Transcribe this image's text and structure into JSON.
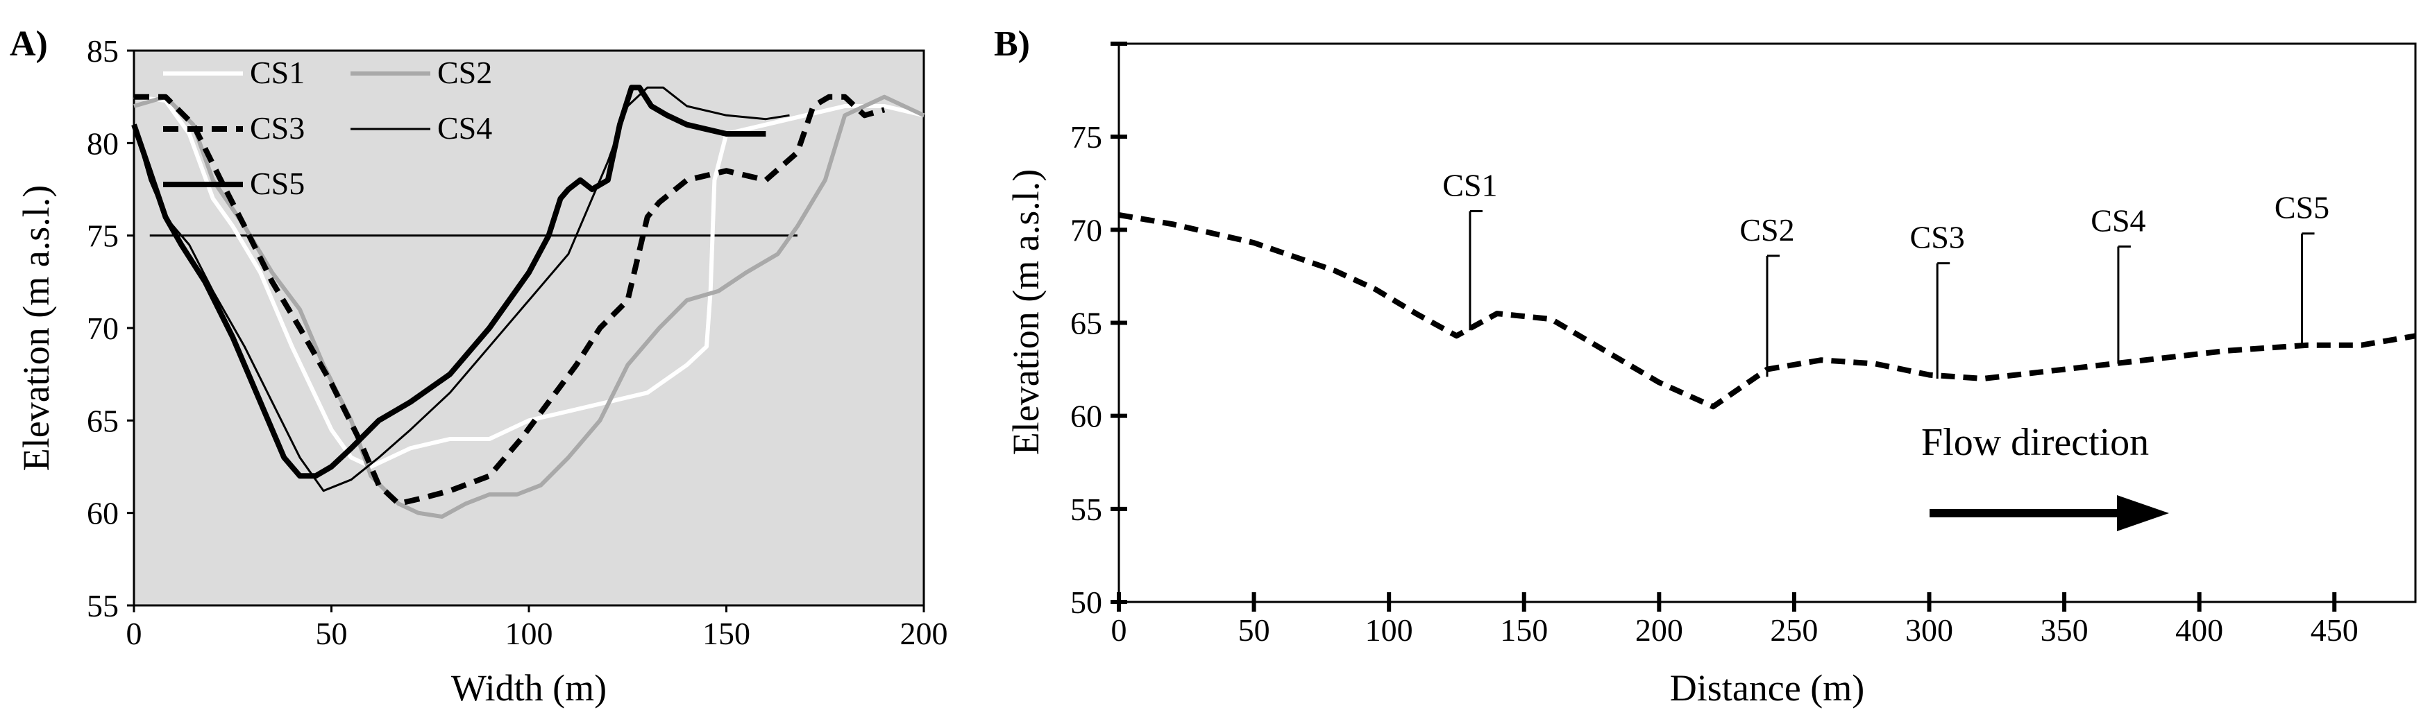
{
  "chart_data": [
    {
      "panel": "A)",
      "type": "line",
      "xlabel": "Width (m)",
      "ylabel": "Elevation (m a.s.l.)",
      "xlim": [
        0,
        200
      ],
      "ylim": [
        55,
        85
      ],
      "xticks": [
        0,
        50,
        100,
        150,
        200
      ],
      "yticks": [
        55,
        60,
        65,
        70,
        75,
        80,
        85
      ],
      "background": "#dcdcdc",
      "legend": [
        "CS1",
        "CS2",
        "CS3",
        "CS4",
        "CS5"
      ],
      "reference_line": {
        "y": 75,
        "x": [
          4,
          168
        ]
      },
      "series": [
        {
          "name": "CS1",
          "color": "#ffffff",
          "width": 6,
          "dash": "",
          "x": [
            0,
            8,
            14,
            20,
            25,
            32,
            40,
            50,
            55,
            60,
            65,
            70,
            80,
            90,
            100,
            110,
            120,
            130,
            140,
            145,
            146,
            147,
            150,
            160,
            170,
            180,
            190,
            200
          ],
          "y": [
            82.5,
            82.3,
            80.5,
            77,
            75.5,
            73,
            69,
            64.5,
            63,
            62.5,
            63,
            63.5,
            64,
            64,
            65,
            65.5,
            66,
            66.5,
            68,
            69,
            72,
            78,
            80.5,
            81,
            81.5,
            82,
            82,
            81.5
          ]
        },
        {
          "name": "CS2",
          "color": "#a9a9a9",
          "width": 6,
          "dash": "",
          "x": [
            0,
            8,
            15,
            20,
            28,
            35,
            42,
            48,
            55,
            60,
            67,
            72,
            78,
            84,
            90,
            97,
            103,
            110,
            118,
            125,
            133,
            140,
            148,
            155,
            163,
            168,
            175,
            180,
            190,
            200
          ],
          "y": [
            82,
            82.5,
            81,
            78,
            75.5,
            73,
            71,
            68,
            65,
            62,
            60.5,
            60,
            59.8,
            60.5,
            61,
            61,
            61.5,
            63,
            65,
            68,
            70,
            71.5,
            72,
            73,
            74,
            75.5,
            78,
            81.5,
            82.5,
            81.5
          ]
        },
        {
          "name": "CS3",
          "color": "#000000",
          "width": 8,
          "dash": "22 13",
          "x": [
            0,
            8,
            15,
            22,
            28,
            35,
            42,
            50,
            57,
            62,
            67,
            73,
            80,
            90,
            98,
            105,
            112,
            118,
            125,
            130,
            133,
            140,
            150,
            160,
            168,
            172,
            176,
            180,
            185,
            190
          ],
          "y": [
            82.5,
            82.5,
            81,
            78,
            75.5,
            72.5,
            70,
            67,
            64,
            61.5,
            60.5,
            60.8,
            61.2,
            62,
            64,
            66,
            68,
            70,
            71.5,
            76,
            76.8,
            78,
            78.5,
            78,
            79.5,
            82,
            82.5,
            82.5,
            81.5,
            81.8
          ]
        },
        {
          "name": "CS4",
          "color": "#000000",
          "width": 3,
          "dash": "",
          "x": [
            0,
            4,
            8,
            14,
            20,
            28,
            35,
            42,
            48,
            55,
            62,
            70,
            80,
            90,
            100,
            110,
            115,
            120,
            125,
            130,
            134,
            140,
            150,
            160,
            166
          ],
          "y": [
            81,
            78,
            76,
            74.5,
            72,
            69,
            66,
            63,
            61.2,
            61.8,
            63,
            64.5,
            66.5,
            69,
            71.5,
            74,
            76.5,
            79,
            82,
            83,
            83,
            82,
            81.5,
            81.3,
            81.5
          ]
        },
        {
          "name": "CS5",
          "color": "#000000",
          "width": 8,
          "dash": "",
          "x": [
            0,
            4,
            8,
            12,
            18,
            25,
            32,
            38,
            42,
            46,
            50,
            55,
            62,
            70,
            80,
            90,
            100,
            105,
            108,
            110,
            113,
            116,
            120,
            123,
            126,
            128,
            131,
            135,
            140,
            150,
            160
          ],
          "y": [
            81,
            78.5,
            76,
            74.5,
            72.5,
            69.5,
            66,
            63,
            62,
            62,
            62.5,
            63.5,
            65,
            66,
            67.5,
            70,
            73,
            75,
            77,
            77.5,
            78,
            77.5,
            78,
            81,
            83,
            83,
            82,
            81.5,
            81,
            80.5,
            80.5
          ]
        }
      ]
    },
    {
      "panel": "B)",
      "type": "line",
      "xlabel": "Distance (m)",
      "ylabel": "Elevation (m a.s.l.)",
      "xlim": [
        0,
        480
      ],
      "ylim": [
        50,
        80
      ],
      "xticks": [
        0,
        50,
        100,
        150,
        200,
        250,
        300,
        350,
        400,
        450
      ],
      "yticks": [
        50,
        55,
        60,
        65,
        70,
        75
      ],
      "annotation": "Flow direction",
      "series": [
        {
          "name": "longitudinal profile",
          "color": "#000000",
          "width": 8,
          "dash": "20 12",
          "x": [
            0,
            20,
            50,
            80,
            95,
            110,
            125,
            140,
            160,
            180,
            200,
            220,
            240,
            260,
            280,
            300,
            320,
            350,
            380,
            410,
            440,
            460,
            480
          ],
          "y": [
            70.8,
            70.3,
            69.3,
            67.8,
            66.8,
            65.5,
            64.3,
            65.5,
            65.2,
            63.5,
            61.8,
            60.5,
            62.5,
            63,
            62.8,
            62.2,
            62,
            62.5,
            63,
            63.5,
            63.8,
            63.8,
            64.3
          ]
        }
      ],
      "cross_sections": [
        {
          "label": "CS1",
          "x": 130,
          "y_line": 64.6,
          "y_top": 71
        },
        {
          "label": "CS2",
          "x": 240,
          "y_line": 62.1,
          "y_top": 68.6
        },
        {
          "label": "CS3",
          "x": 303,
          "y_line": 62.0,
          "y_top": 68.2
        },
        {
          "label": "CS4",
          "x": 370,
          "y_line": 62.8,
          "y_top": 69.1
        },
        {
          "label": "CS5",
          "x": 438,
          "y_line": 63.8,
          "y_top": 69.8
        }
      ]
    }
  ]
}
